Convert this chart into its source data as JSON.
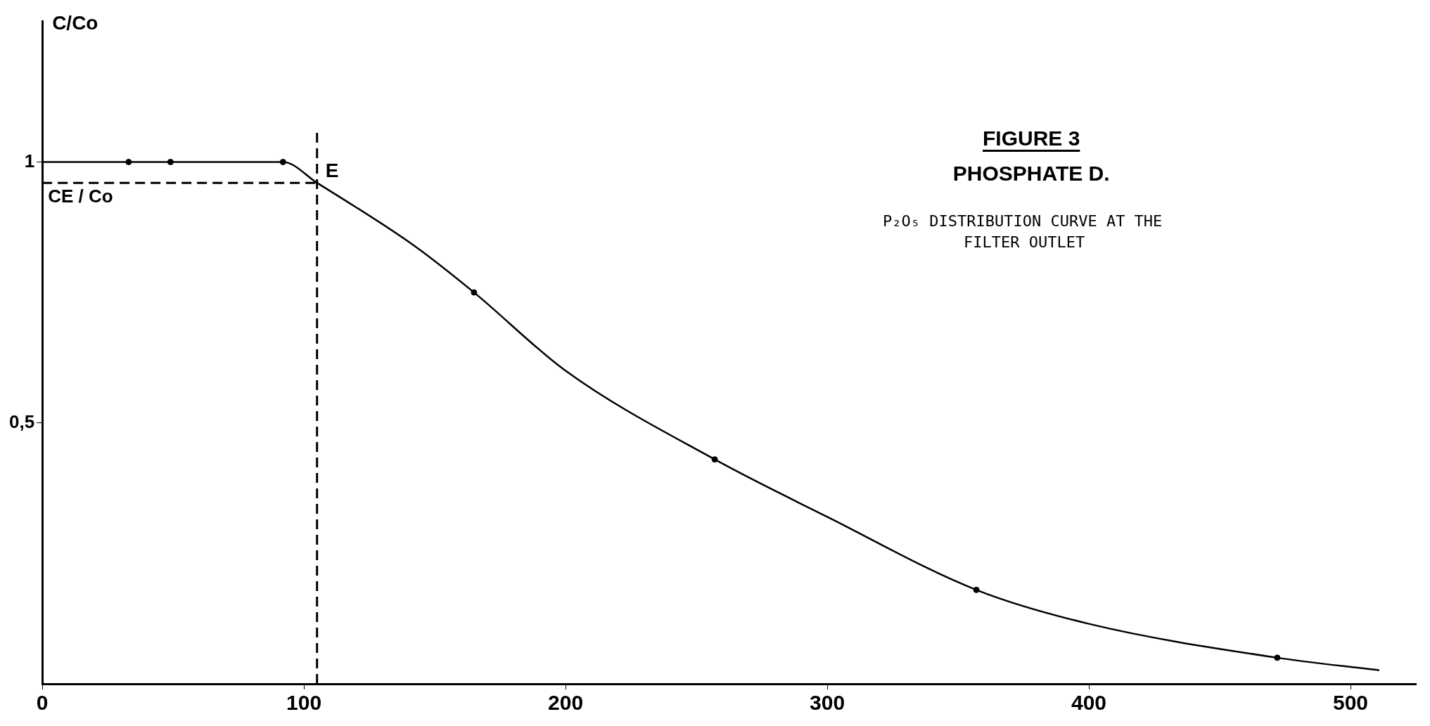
{
  "chart_data": {
    "type": "line",
    "title": "FIGURE 3",
    "subtitle": "PHOSPHATE D.",
    "ylabel": "C/Co",
    "annotations": [
      "P₂O₅ DISTRIBUTION CURVE AT THE FILTER OUTLET",
      {
        "text": "E",
        "x": 105,
        "y": 0.96
      }
    ],
    "series": [
      {
        "marker": "none",
        "color": "#000000",
        "x": [
          0,
          33,
          49,
          92,
          105,
          142,
          165,
          200,
          257,
          300,
          357,
          400,
          472,
          511
        ],
        "values": [
          1,
          1,
          1,
          1,
          0.96,
          0.84,
          0.75,
          0.6,
          0.43,
          0.32,
          0.18,
          0.115,
          0.05,
          0.026
        ]
      },
      {
        "type": "scatter",
        "marker": "circle",
        "color": "#000000",
        "x": [
          33,
          49,
          92,
          165,
          257,
          357,
          472
        ],
        "values": [
          1,
          1,
          1,
          0.75,
          0.43,
          0.18,
          0.05
        ]
      }
    ],
    "ref_lines": [
      {
        "axis": "x",
        "value": 105,
        "label": null,
        "line_style": "dashed",
        "color": "#000000"
      },
      {
        "axis": "y",
        "value": 0.96,
        "label": "CE / Co",
        "line_style": "dashed",
        "color": "#000000"
      }
    ],
    "xlim": [
      0,
      525
    ],
    "xticks": [
      0,
      100,
      200,
      300,
      400,
      500
    ],
    "ylim": [
      0,
      1.27
    ],
    "yticks": [
      {
        "value": 0.5,
        "label": "0,5"
      },
      {
        "value": 1,
        "label": "1"
      }
    ],
    "grid": false,
    "legend": false
  }
}
